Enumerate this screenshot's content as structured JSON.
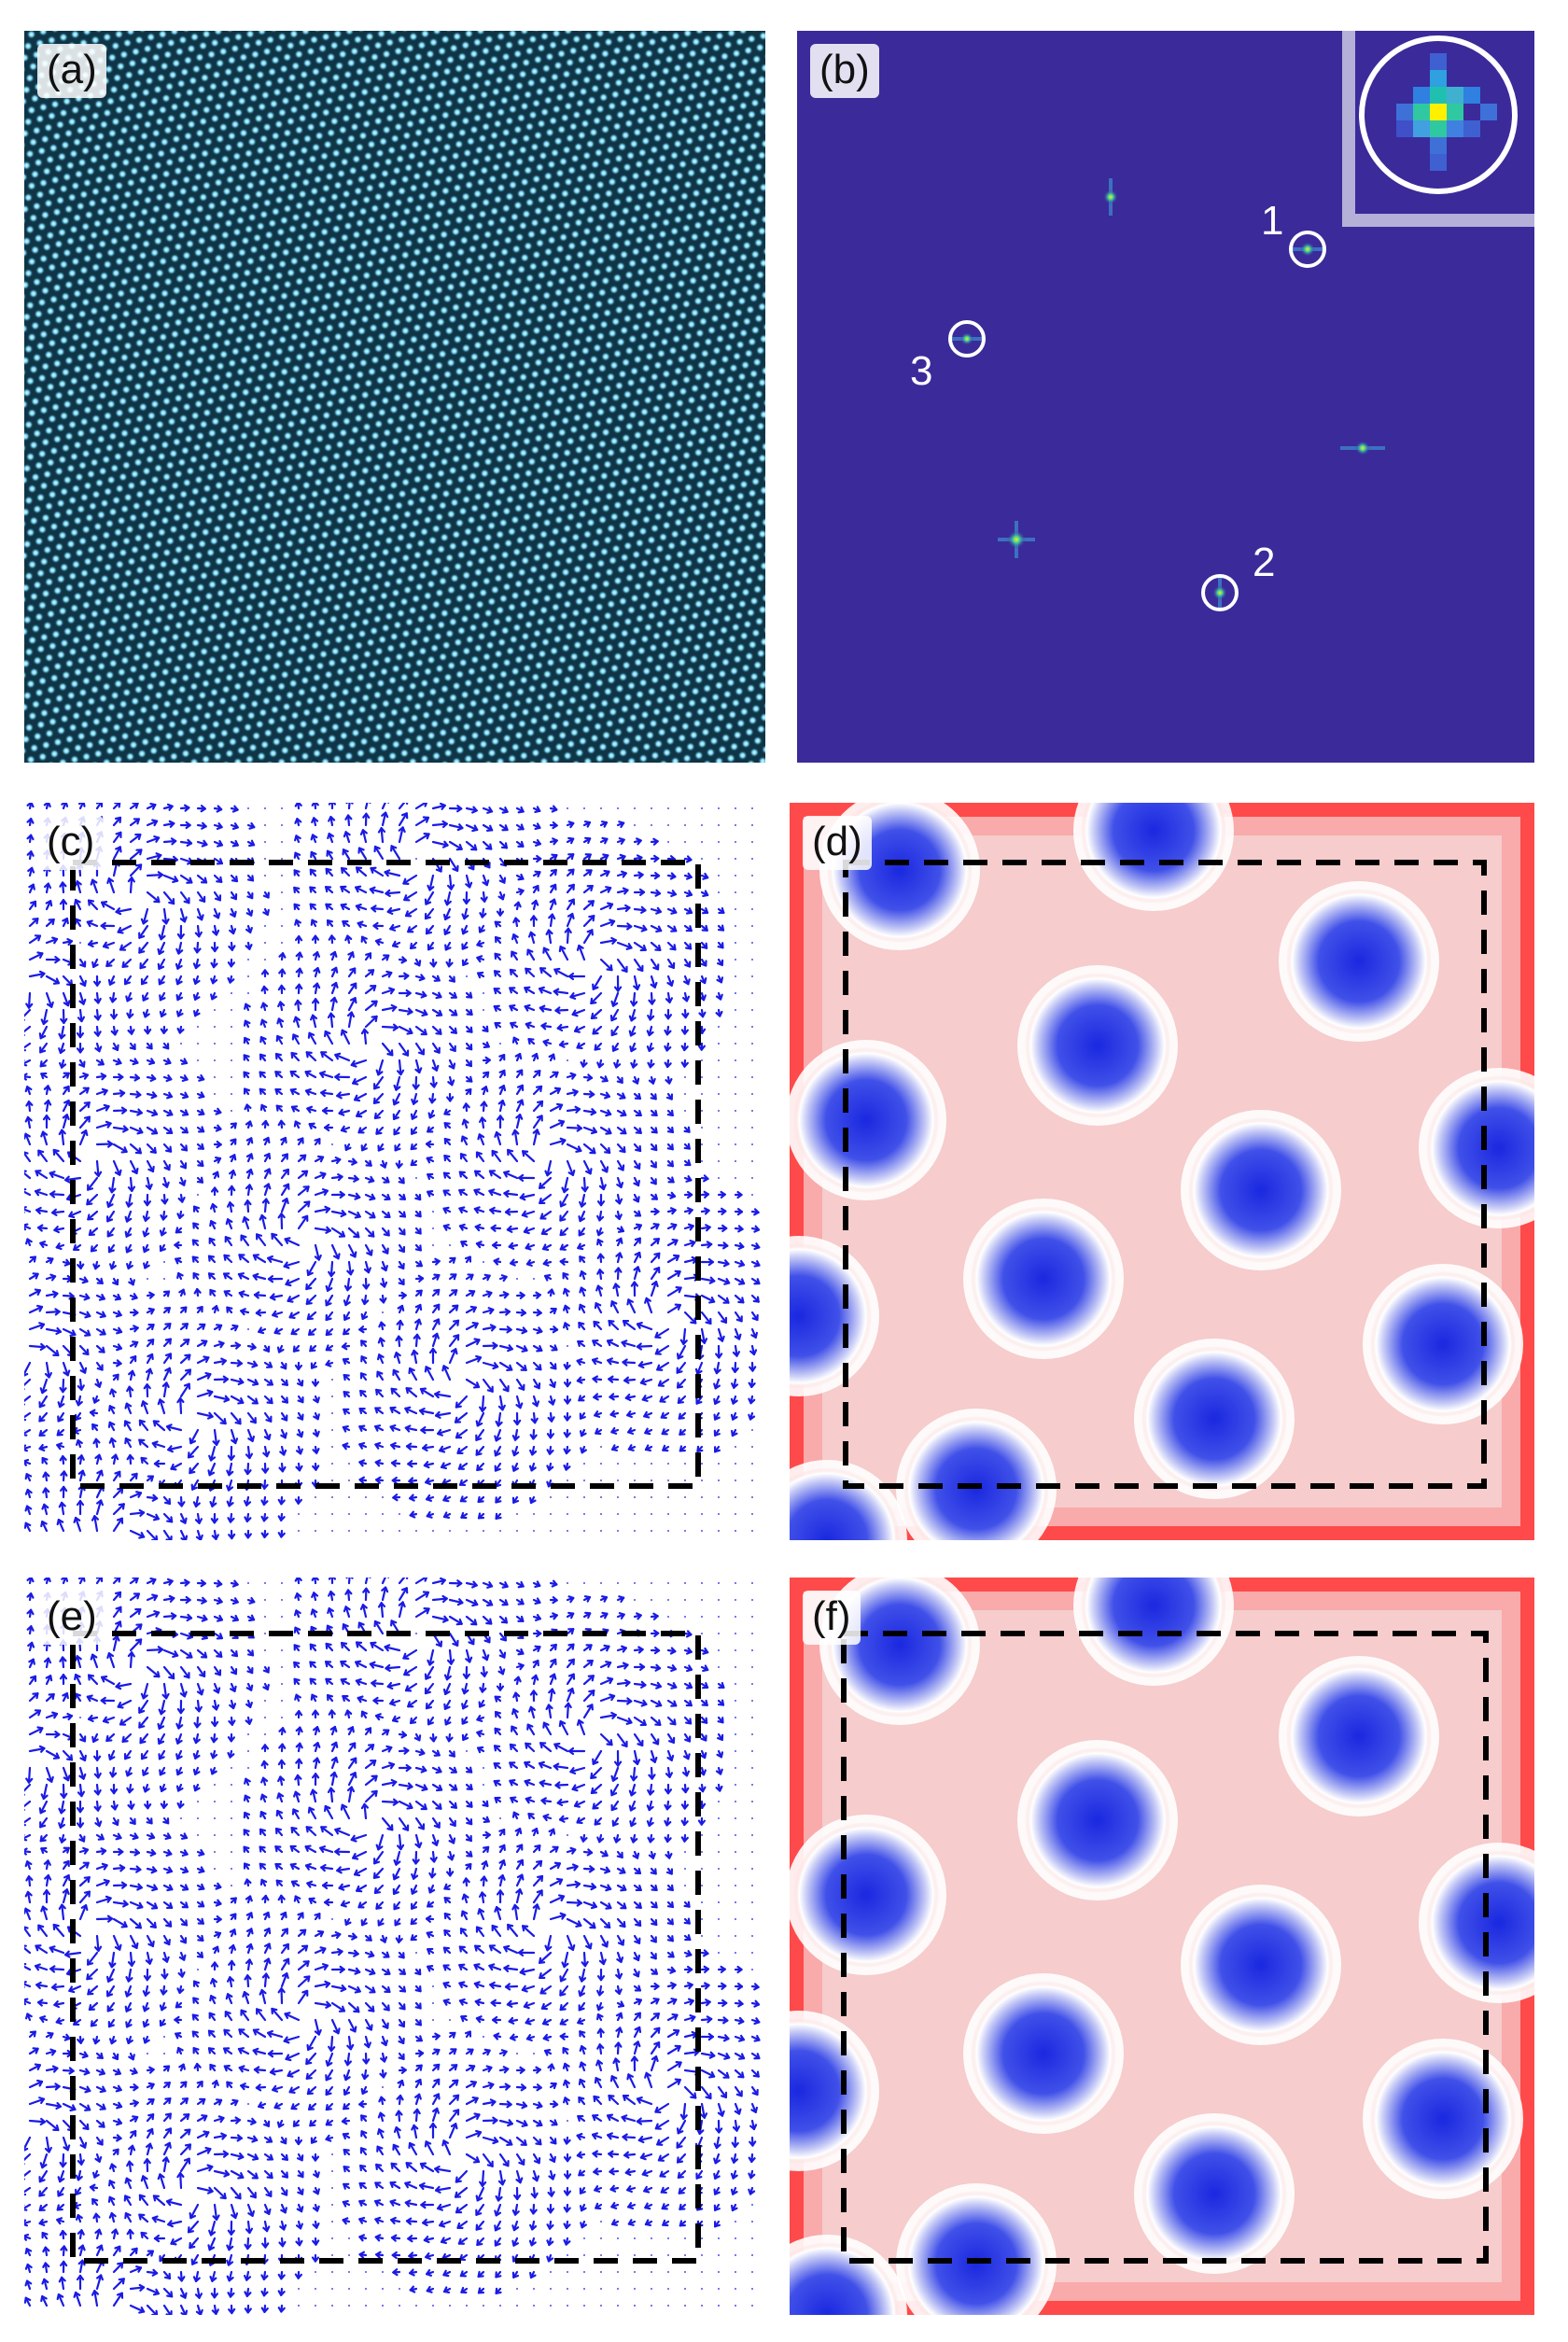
{
  "figure": {
    "panels": [
      {
        "id": "a",
        "label": "(a)"
      },
      {
        "id": "b",
        "label": "(b)",
        "peak_labels": [
          "1",
          "2",
          "3"
        ]
      },
      {
        "id": "c",
        "label": "(c)"
      },
      {
        "id": "d",
        "label": "(d)"
      },
      {
        "id": "e",
        "label": "(e)"
      },
      {
        "id": "f",
        "label": "(f)"
      }
    ]
  },
  "colors": {
    "lattice_bg": "#0d3040",
    "lattice_spot": "#7fd6f0",
    "fft_bg": "#3a2a9a",
    "fft_peak": "#ffe600",
    "arrows": "#1a1ae6",
    "skyrmion_core": "#2030e0",
    "field_bg": "#f7c8c8",
    "edge_red": "#ff1a1a",
    "dashed_box": "#000000"
  }
}
